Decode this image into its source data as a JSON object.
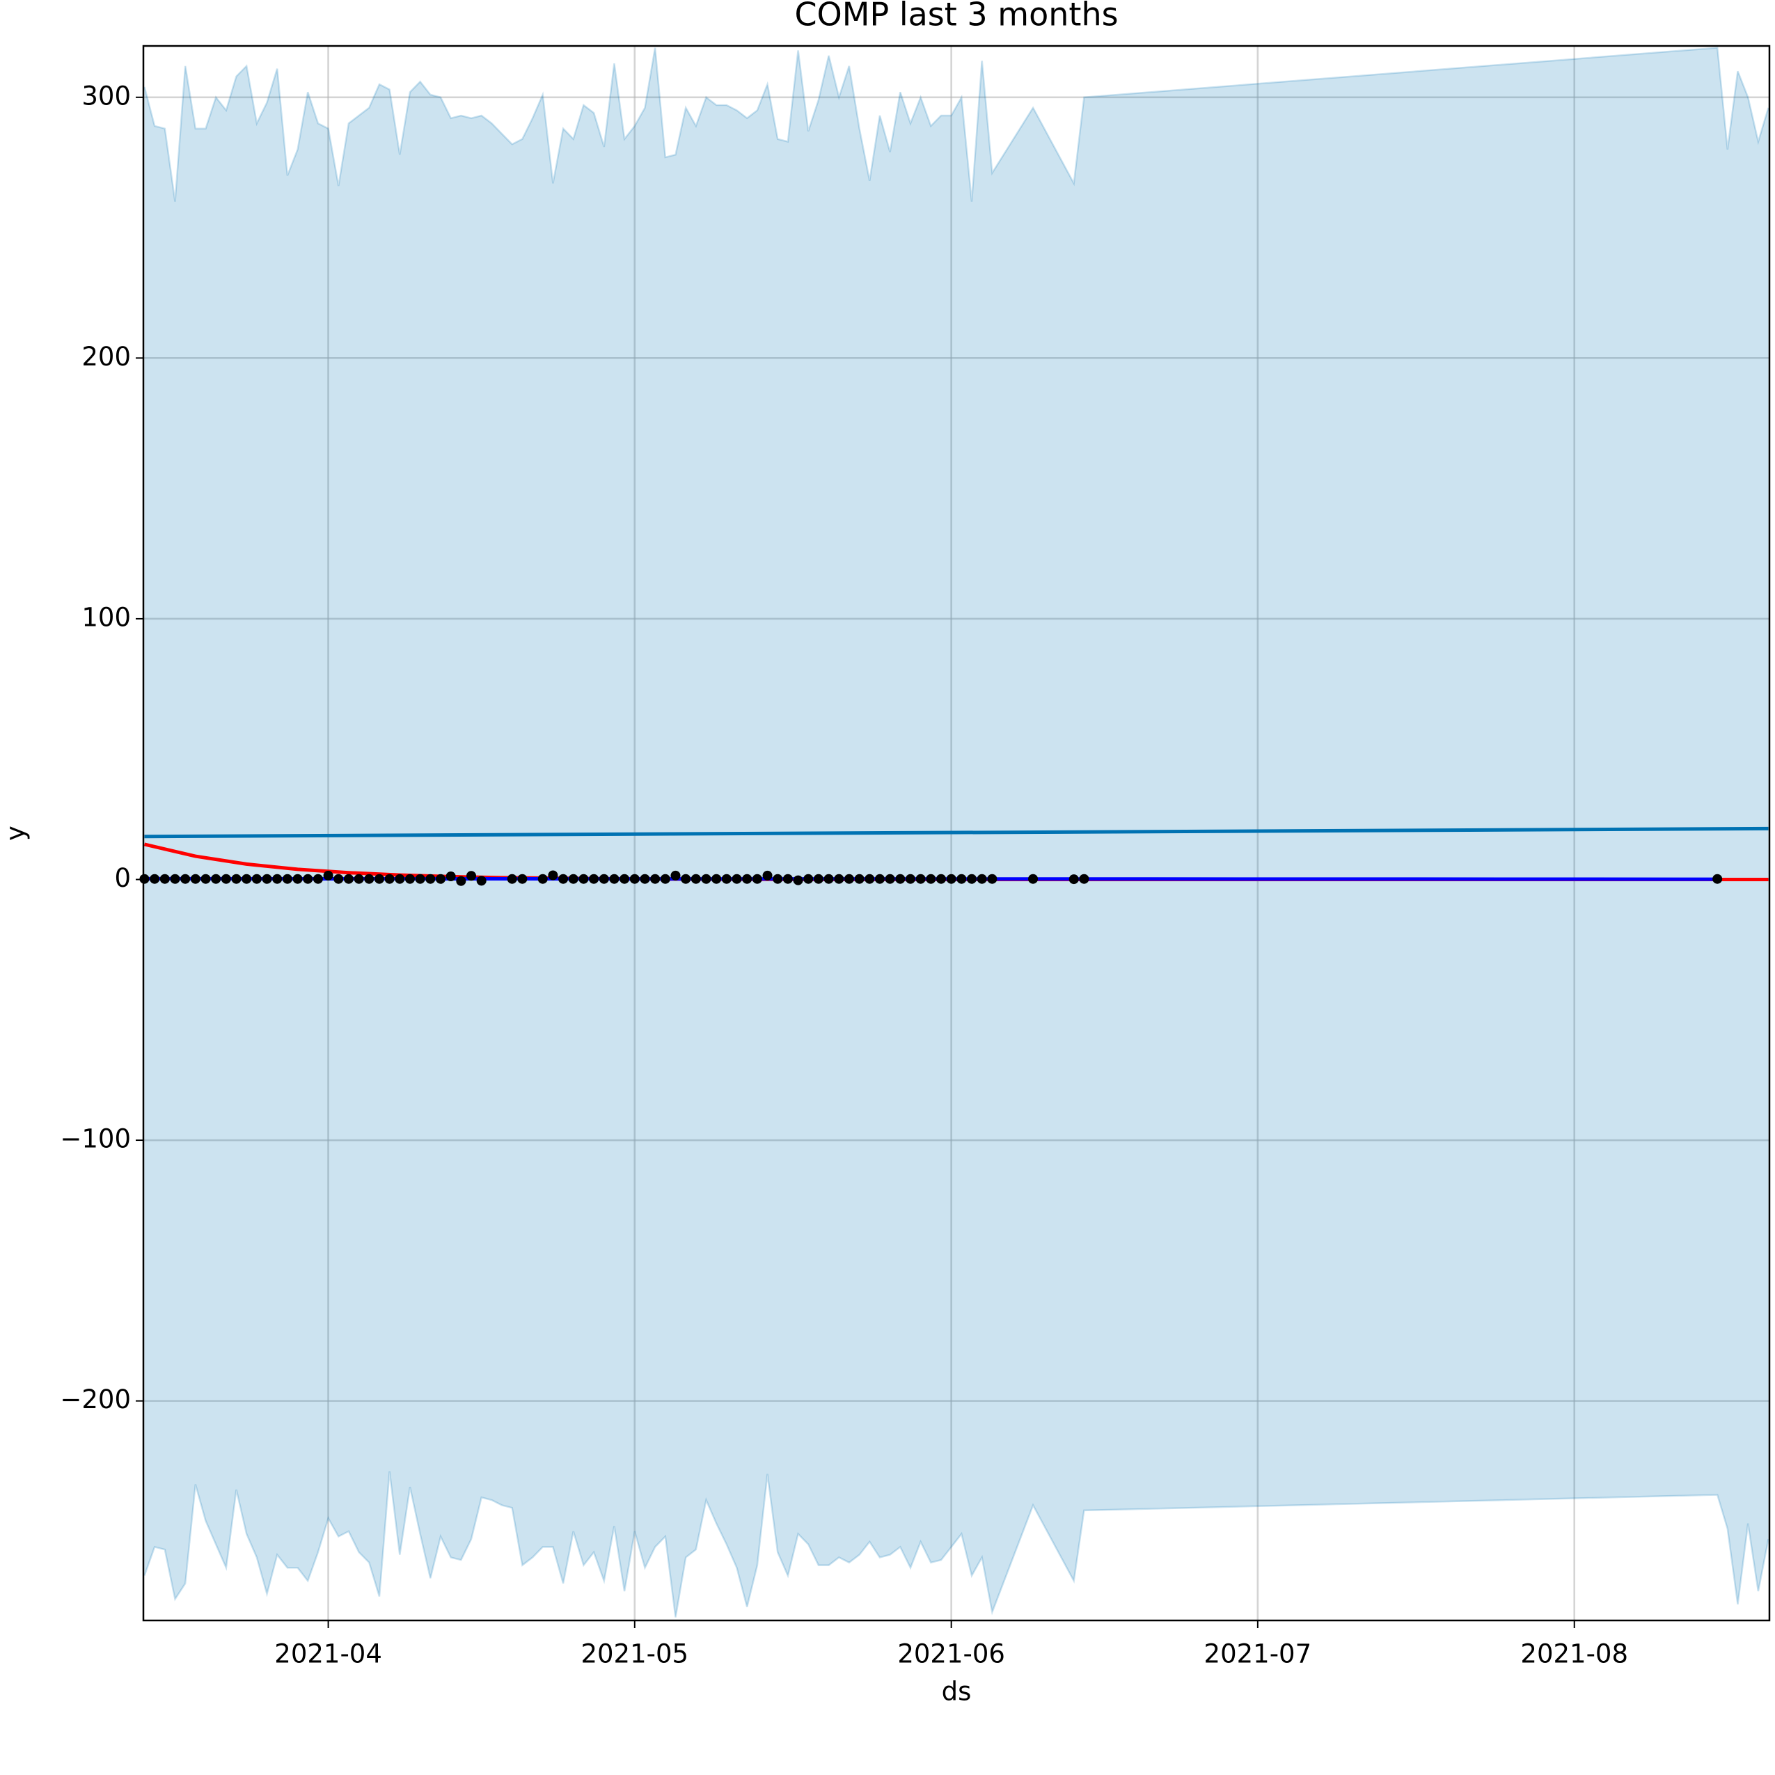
{
  "chart_data": {
    "type": "line",
    "title": "COMP last 3 months",
    "xlabel": "ds",
    "ylabel": "y",
    "xlim": [
      72.9,
      232.1
    ],
    "xticks": [
      {
        "value": 91,
        "label": "2021-04"
      },
      {
        "value": 121,
        "label": "2021-05"
      },
      {
        "value": 152,
        "label": "2021-06"
      },
      {
        "value": 182,
        "label": "2021-07"
      },
      {
        "value": 213,
        "label": "2021-08"
      }
    ],
    "ylim": [
      -284.2,
      319.7
    ],
    "yticks": [
      {
        "value": -200,
        "label": "−200"
      },
      {
        "value": -100,
        "label": "−100"
      },
      0,
      100,
      200,
      300
    ],
    "grid": true,
    "band": {
      "color": "#0072b2",
      "x": [
        73,
        74,
        75,
        76,
        77,
        78,
        79,
        80,
        81,
        82,
        83,
        84,
        85,
        86,
        87,
        88,
        89,
        90,
        91,
        92,
        93,
        94,
        95,
        96,
        97,
        98,
        99,
        100,
        101,
        102,
        103,
        104,
        105,
        106,
        107,
        108,
        109,
        110,
        111,
        112,
        113,
        114,
        115,
        116,
        117,
        118,
        119,
        120,
        121,
        122,
        123,
        124,
        125,
        126,
        127,
        128,
        129,
        130,
        131,
        132,
        133,
        134,
        135,
        136,
        137,
        138,
        139,
        140,
        141,
        142,
        143,
        144,
        145,
        146,
        147,
        148,
        149,
        150,
        151,
        152,
        153,
        154,
        155,
        156,
        160,
        164,
        165,
        227,
        228,
        229,
        230,
        231,
        232
      ],
      "upper": [
        304,
        289,
        288,
        260,
        312,
        288,
        288,
        300,
        295,
        308,
        312,
        290,
        298,
        311,
        270,
        280,
        302,
        290,
        288,
        266,
        290,
        293,
        296,
        305,
        303,
        278,
        302,
        306,
        301,
        300,
        292,
        293,
        292,
        293,
        290,
        286,
        282,
        284,
        292,
        301,
        267,
        288,
        284,
        297,
        294,
        281,
        313,
        284,
        289,
        296,
        319,
        277,
        278,
        296,
        289,
        300,
        297,
        297,
        295,
        292,
        295,
        305,
        284,
        283,
        318,
        287,
        299,
        316,
        300,
        312,
        288,
        268,
        293,
        279,
        302,
        290,
        300,
        289,
        293,
        293,
        300,
        260,
        314,
        271,
        296,
        267,
        300,
        319,
        280,
        310,
        300,
        283,
        296
      ],
      "lower": [
        -267,
        -256,
        -257,
        -276,
        -270,
        -232,
        -246,
        -255,
        -264,
        -234,
        -251,
        -260,
        -274,
        -259,
        -264,
        -264,
        -269,
        -258,
        -245,
        -252,
        -250,
        -258,
        -262,
        -275,
        -227,
        -259,
        -233,
        -251,
        -268,
        -252,
        -260,
        -261,
        -253,
        -237,
        -238,
        -240,
        -241,
        -263,
        -260,
        -256,
        -256,
        -270,
        -250,
        -263,
        -258,
        -269,
        -248,
        -273,
        -250,
        -264,
        -256,
        -252,
        -283,
        -260,
        -257,
        -238,
        -247,
        -255,
        -264,
        -279,
        -263,
        -228,
        -258,
        -267,
        -251,
        -255,
        -263,
        -263,
        -260,
        -262,
        -259,
        -254,
        -260,
        -259,
        -256,
        -264,
        -254,
        -262,
        -261,
        -256,
        -251,
        -267,
        -260,
        -281,
        -240,
        -269,
        -242,
        -236,
        -249,
        -278,
        -247,
        -273,
        -253
      ]
    },
    "series": [
      {
        "color": "#0072b2",
        "x": [
          73,
          232
        ],
        "values": [
          16.5,
          19.5
        ]
      },
      {
        "color": "#ff0000",
        "x": [
          73,
          78,
          83,
          88,
          93,
          98,
          103,
          108,
          113,
          118,
          123,
          130,
          140,
          150,
          160,
          180,
          200,
          232
        ],
        "values": [
          13.5,
          8.9,
          5.9,
          3.9,
          2.6,
          1.7,
          1.1,
          0.7,
          0.5,
          0.3,
          0.2,
          0.1,
          0,
          0,
          0,
          0,
          0,
          0
        ]
      },
      {
        "color": "#0000ff",
        "x": [
          73,
          156,
          227
        ],
        "values": [
          0.3,
          0.2,
          0.1
        ]
      }
    ],
    "points": {
      "color": "#000000",
      "x": [
        73,
        74,
        75,
        76,
        77,
        78,
        79,
        80,
        81,
        82,
        83,
        84,
        85,
        86,
        87,
        88,
        89,
        90,
        91,
        92,
        93,
        94,
        95,
        96,
        97,
        98,
        99,
        100,
        101,
        102,
        103,
        104,
        105,
        106,
        109,
        110,
        112,
        113,
        114,
        115,
        116,
        117,
        118,
        119,
        120,
        121,
        122,
        123,
        124,
        125,
        126,
        127,
        128,
        129,
        130,
        131,
        132,
        133,
        134,
        135,
        136,
        137,
        138,
        139,
        140,
        141,
        142,
        143,
        144,
        145,
        146,
        147,
        148,
        149,
        150,
        151,
        152,
        153,
        154,
        155,
        156,
        160,
        164,
        165,
        227
      ],
      "values": [
        0.2,
        0.2,
        0.2,
        0.2,
        0.2,
        0.2,
        0.2,
        0.2,
        0.2,
        0.2,
        0.2,
        0.2,
        0.2,
        0.2,
        0.2,
        0.2,
        0.2,
        0.2,
        1.5,
        0.2,
        0.2,
        0.2,
        0.2,
        0.2,
        0.2,
        0.2,
        0.2,
        0.2,
        0.2,
        0.2,
        1.2,
        -0.6,
        1.4,
        -0.5,
        0.2,
        0.2,
        0.2,
        1.6,
        0.2,
        0.2,
        0.2,
        0.2,
        0.2,
        0.2,
        0.2,
        0.2,
        0.2,
        0.2,
        0.2,
        1.5,
        0.2,
        0.2,
        0.2,
        0.2,
        0.2,
        0.2,
        0.2,
        0.2,
        1.5,
        0.2,
        0.2,
        -0.3,
        0.2,
        0.2,
        0.2,
        0.2,
        0.2,
        0.2,
        0.2,
        0.2,
        0.2,
        0.2,
        0.2,
        0.2,
        0.2,
        0.2,
        0.2,
        0.2,
        0.2,
        0.2,
        0.2,
        0.2,
        0.1,
        0.2,
        0.2
      ]
    }
  }
}
